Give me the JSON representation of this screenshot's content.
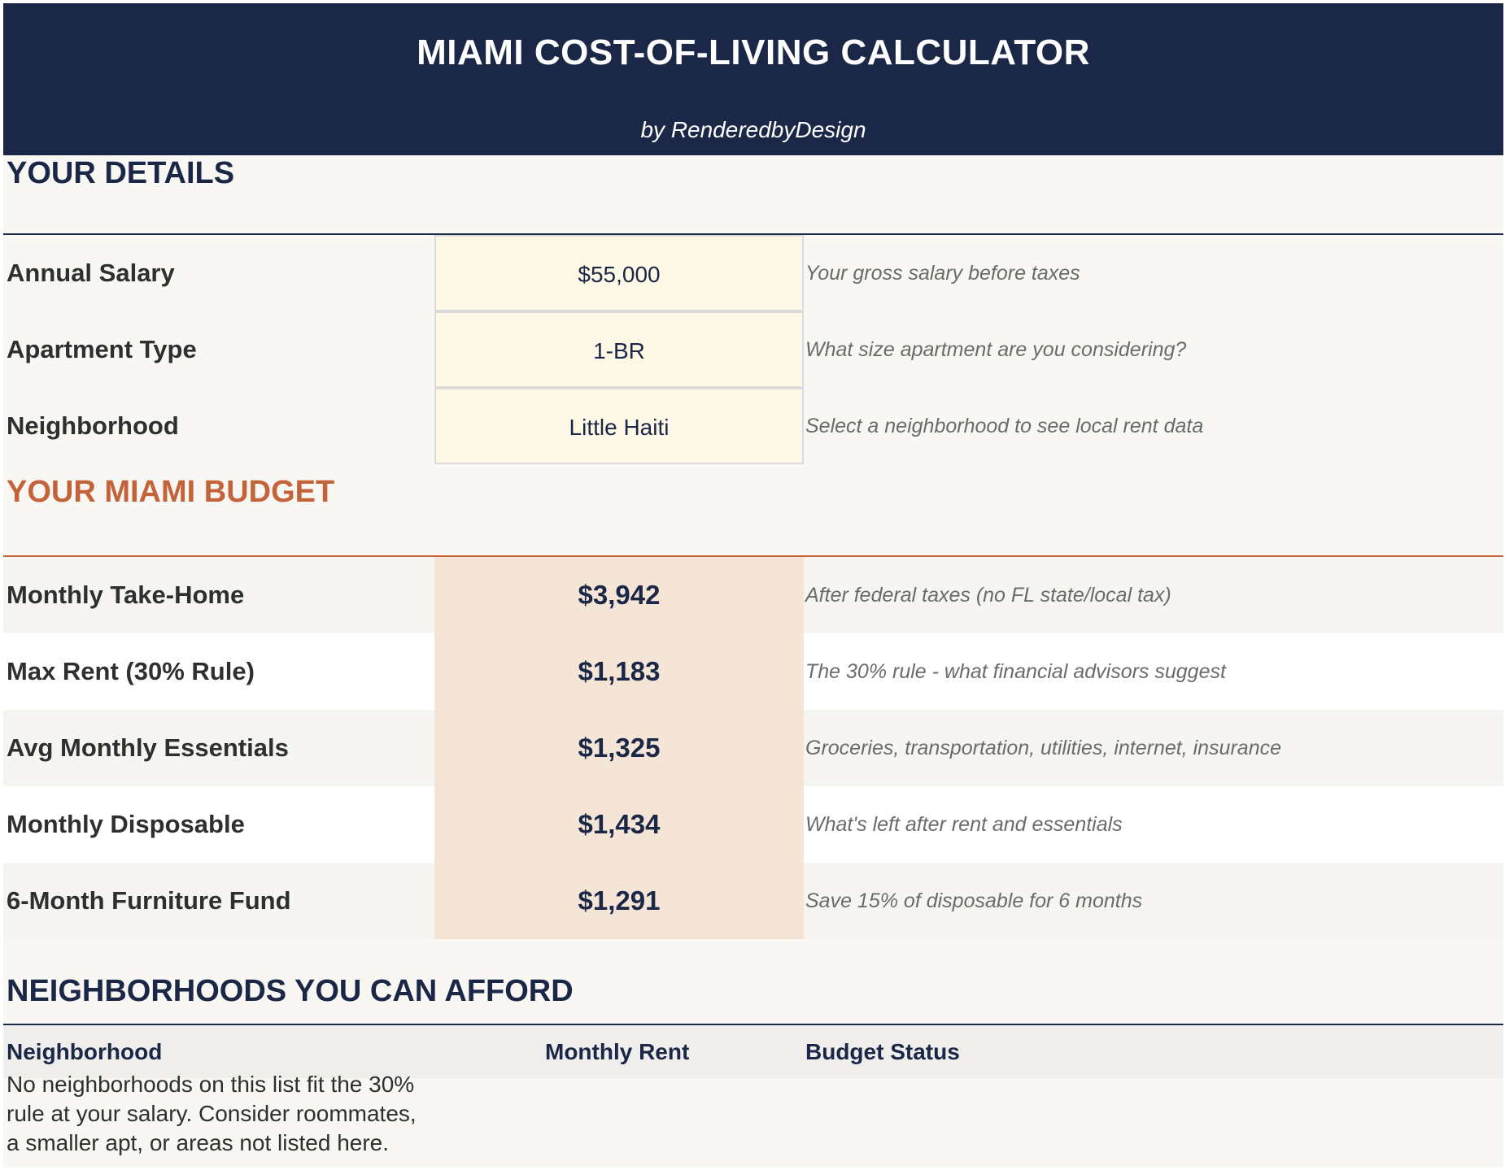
{
  "header": {
    "title": "MIAMI COST-OF-LIVING CALCULATOR",
    "byline": "by RenderedbyDesign"
  },
  "details": {
    "heading": "YOUR DETAILS",
    "rows": [
      {
        "label": "Annual Salary",
        "value": "$55,000",
        "note": "Your gross salary before taxes"
      },
      {
        "label": "Apartment Type",
        "value": "1-BR",
        "note": "What size apartment are you considering?"
      },
      {
        "label": "Neighborhood",
        "value": "Little Haiti",
        "note": "Select a neighborhood to see local rent data"
      }
    ]
  },
  "budget": {
    "heading": "YOUR MIAMI BUDGET",
    "rows": [
      {
        "label": "Monthly Take-Home",
        "value": "$3,942",
        "note": "After federal taxes (no FL state/local tax)"
      },
      {
        "label": "Max Rent (30% Rule)",
        "value": "$1,183",
        "note": "The 30% rule - what financial advisors suggest"
      },
      {
        "label": "Avg Monthly Essentials",
        "value": "$1,325",
        "note": "Groceries, transportation, utilities, internet, insurance"
      },
      {
        "label": "Monthly Disposable",
        "value": "$1,434",
        "note": "What's left after rent and essentials"
      },
      {
        "label": "6-Month Furniture Fund",
        "value": "$1,291",
        "note": "Save 15% of disposable for 6 months"
      }
    ]
  },
  "neighborhoods": {
    "heading": "NEIGHBORHOODS YOU CAN AFFORD",
    "columns": [
      "Neighborhood",
      "Monthly Rent",
      "Budget Status"
    ],
    "empty_message": "No neighborhoods on this list fit the 30% rule at your salary. Consider roommates, a smaller apt, or areas not listed here."
  },
  "colors": {
    "navy": "#1b2746",
    "accent": "#c4623a",
    "input_fill": "#fef8e6",
    "result_fill": "#f5e5d6"
  }
}
